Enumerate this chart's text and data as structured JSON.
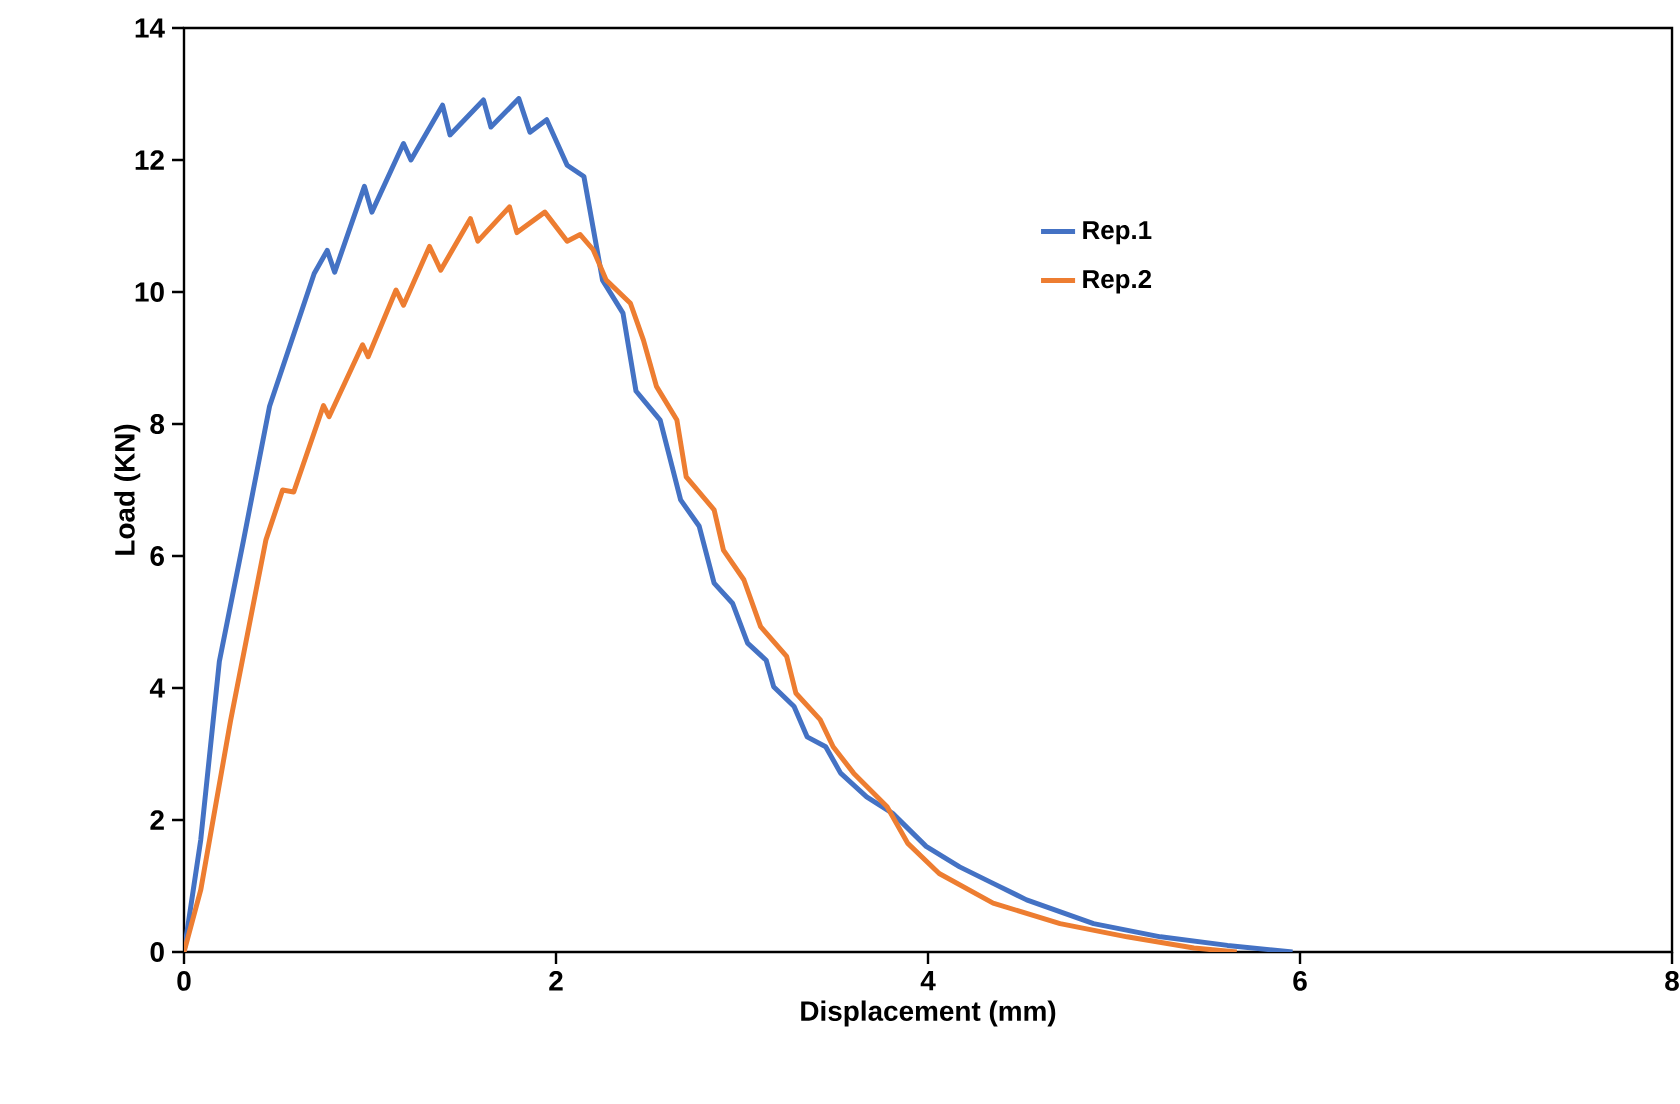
{
  "chart_data": {
    "type": "line",
    "xlabel": "Displacement (mm)",
    "ylabel": "Load (KN)",
    "xlim": [
      0,
      8
    ],
    "ylim": [
      0,
      14
    ],
    "xticks": [
      0,
      2,
      4,
      6,
      8
    ],
    "yticks": [
      0,
      2,
      4,
      6,
      8,
      10,
      12,
      14
    ],
    "grid": false,
    "legend": "right",
    "marker": "none",
    "line_style": "solid",
    "series": [
      {
        "name": "Rep.1",
        "color": "#4472c4",
        "x": [
          0,
          0.09,
          0.19,
          0.32,
          0.46,
          0.7,
          0.77,
          0.81,
          0.97,
          1.01,
          1.18,
          1.22,
          1.39,
          1.43,
          1.61,
          1.65,
          1.8,
          1.86,
          1.95,
          2.06,
          2.15,
          2.25,
          2.36,
          2.43,
          2.56,
          2.67,
          2.77,
          2.85,
          2.95,
          3.03,
          3.13,
          3.17,
          3.28,
          3.35,
          3.45,
          3.53,
          3.67,
          3.81,
          3.99,
          4.17,
          4.35,
          4.53,
          4.89,
          5.25,
          5.61,
          5.96
        ],
        "values": [
          0,
          1.7,
          4.4,
          6.24,
          8.27,
          10.28,
          10.63,
          10.3,
          11.6,
          11.21,
          12.25,
          12.0,
          12.83,
          12.38,
          12.91,
          12.5,
          12.93,
          12.42,
          12.61,
          11.92,
          11.75,
          10.18,
          9.68,
          8.5,
          8.06,
          6.85,
          6.45,
          5.59,
          5.28,
          4.68,
          4.42,
          4.02,
          3.72,
          3.26,
          3.11,
          2.71,
          2.35,
          2.1,
          1.6,
          1.29,
          1.04,
          0.79,
          0.43,
          0.23,
          0.1,
          0
        ]
      },
      {
        "name": "Rep.2",
        "color": "#ed7d31",
        "x": [
          0,
          0.09,
          0.25,
          0.44,
          0.53,
          0.59,
          0.75,
          0.78,
          0.96,
          0.99,
          1.14,
          1.18,
          1.32,
          1.38,
          1.54,
          1.58,
          1.75,
          1.79,
          1.94,
          2.06,
          2.13,
          2.2,
          2.27,
          2.4,
          2.47,
          2.54,
          2.65,
          2.7,
          2.85,
          2.9,
          3.01,
          3.1,
          3.24,
          3.29,
          3.42,
          3.49,
          3.6,
          3.78,
          3.89,
          4.06,
          4.35,
          4.71,
          5.07,
          5.43,
          5.66
        ],
        "values": [
          0,
          0.94,
          3.5,
          6.24,
          7.0,
          6.97,
          8.28,
          8.11,
          9.2,
          9.02,
          10.03,
          9.8,
          10.69,
          10.33,
          11.11,
          10.77,
          11.29,
          10.9,
          11.21,
          10.77,
          10.87,
          10.64,
          10.18,
          9.83,
          9.27,
          8.57,
          8.06,
          7.2,
          6.7,
          6.09,
          5.64,
          4.93,
          4.48,
          3.92,
          3.52,
          3.11,
          2.71,
          2.2,
          1.65,
          1.19,
          0.74,
          0.43,
          0.23,
          0.06,
          0
        ]
      }
    ]
  }
}
